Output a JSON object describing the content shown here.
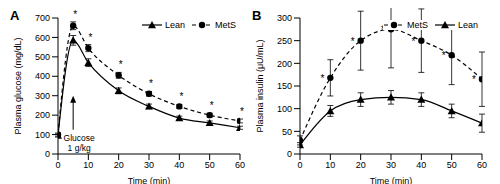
{
  "chart_data": [
    {
      "type": "line",
      "title": "A",
      "x_label": "Time (min)",
      "y_label": "Plasma glucose (mg/dL)",
      "x": [
        0,
        5,
        10,
        20,
        30,
        40,
        50,
        60
      ],
      "xlim": [
        0,
        60
      ],
      "xticks": [
        0,
        10,
        20,
        30,
        40,
        50,
        60
      ],
      "ylim": [
        0,
        700
      ],
      "yticks": [
        0,
        100,
        200,
        300,
        400,
        500,
        600,
        700
      ],
      "legend": "upper right",
      "series": [
        {
          "name": "Lean",
          "color": "#000000",
          "marker": "triangle",
          "line_style": "solid",
          "values": [
            95,
            585,
            470,
            325,
            245,
            185,
            160,
            135
          ],
          "errors": [
            8,
            25,
            20,
            15,
            12,
            10,
            10,
            8
          ]
        },
        {
          "name": "MetS",
          "color": "#000000",
          "marker": "circle",
          "line_style": "dashed",
          "values": [
            100,
            660,
            545,
            405,
            310,
            245,
            200,
            170
          ],
          "errors": [
            8,
            20,
            18,
            15,
            12,
            10,
            10,
            10
          ]
        }
      ],
      "annotations": [
        {
          "text": "Glucose\n1 g/kg",
          "x": 5,
          "y": 300
        },
        {
          "text": "*",
          "x": 5
        },
        {
          "text": "*",
          "x": 10
        },
        {
          "text": "*",
          "x": 20
        },
        {
          "text": "*",
          "x": 30
        },
        {
          "text": "*",
          "x": 40
        },
        {
          "text": "*",
          "x": 50
        },
        {
          "text": "*",
          "x": 60
        }
      ]
    },
    {
      "type": "line",
      "title": "B",
      "x_label": "Time (min)",
      "y_label": "Plasma insulin (μU/mL)",
      "x": [
        0,
        10,
        20,
        30,
        40,
        50,
        60
      ],
      "xlim": [
        0,
        60
      ],
      "xticks": [
        0,
        10,
        20,
        30,
        40,
        50,
        60
      ],
      "ylim": [
        0,
        300
      ],
      "yticks": [
        0,
        50,
        100,
        150,
        200,
        250,
        300
      ],
      "legend": "upper right",
      "series": [
        {
          "name": "MetS",
          "color": "#000000",
          "marker": "circle",
          "line_style": "dashed",
          "values": [
            30,
            168,
            250,
            275,
            250,
            218,
            165
          ],
          "errors": [
            10,
            40,
            65,
            85,
            70,
            65,
            60
          ]
        },
        {
          "name": "Lean",
          "color": "#000000",
          "marker": "triangle",
          "line_style": "solid",
          "values": [
            20,
            95,
            120,
            125,
            120,
            95,
            68
          ],
          "errors": [
            5,
            12,
            15,
            15,
            15,
            15,
            20
          ]
        }
      ],
      "annotations": [
        {
          "text": "*",
          "x": 10
        },
        {
          "text": "*",
          "x": 20
        },
        {
          "text": "*",
          "x": 30
        },
        {
          "text": "*",
          "x": 40
        },
        {
          "text": "*",
          "x": 50
        },
        {
          "text": "*",
          "x": 60
        }
      ]
    }
  ]
}
